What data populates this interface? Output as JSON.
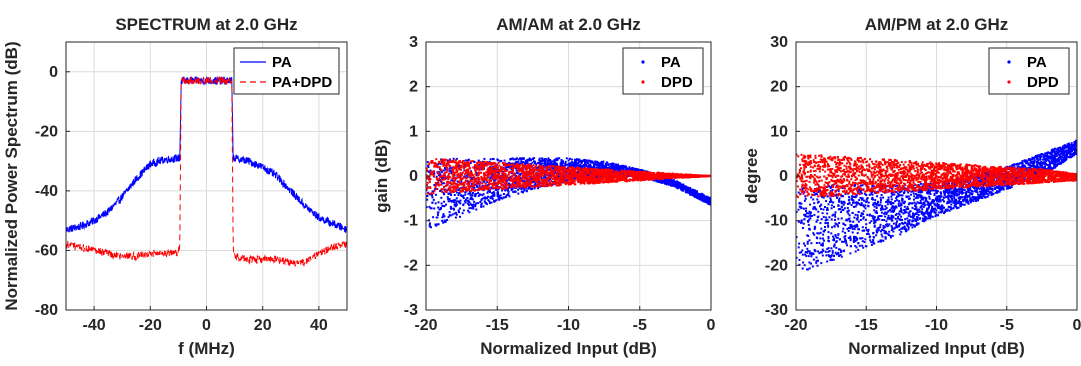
{
  "colors": {
    "pa": "#0000ff",
    "dpd": "#ff0000",
    "axis": "#262626",
    "grid": "#dcdcdc"
  },
  "chart_data": [
    {
      "type": "line",
      "title": "SPECTRUM at 2.0 GHz",
      "xlabel": "f (MHz)",
      "ylabel": "Normalized Power Spectrum (dB)",
      "xlim": [
        -50,
        50
      ],
      "ylim": [
        -80,
        10
      ],
      "xticks": [
        -40,
        -20,
        0,
        20,
        40
      ],
      "yticks": [
        0,
        -20,
        -40,
        -60,
        -80
      ],
      "grid": true,
      "legend_position": "top-right",
      "series": [
        {
          "name": "PA",
          "color": "#0000ff",
          "style": "solid",
          "x": [
            -50,
            -45,
            -40,
            -35,
            -30,
            -25,
            -20,
            -15,
            -10,
            -9.5,
            -9,
            0,
            9,
            9.5,
            10,
            15,
            20,
            25,
            30,
            35,
            40,
            45,
            50
          ],
          "y": [
            -53,
            -52,
            -50,
            -47,
            -42,
            -36,
            -31,
            -29.5,
            -29,
            -29,
            -3,
            -3,
            -3,
            -29,
            -29,
            -30,
            -32,
            -35,
            -40,
            -45,
            -49,
            -51,
            -53
          ]
        },
        {
          "name": "PA+DPD",
          "color": "#ff0000",
          "style": "dashed",
          "x": [
            -50,
            -45,
            -40,
            -35,
            -30,
            -25,
            -20,
            -15,
            -10,
            -9.5,
            -9,
            0,
            9,
            9.5,
            10,
            15,
            20,
            25,
            30,
            35,
            40,
            45,
            50
          ],
          "y": [
            -58,
            -59,
            -60,
            -61,
            -62,
            -62,
            -61,
            -61,
            -61,
            -58,
            -3,
            -3,
            -3,
            -60,
            -62,
            -63,
            -63,
            -63,
            -64,
            -64,
            -61,
            -59,
            -58
          ]
        }
      ]
    },
    {
      "type": "scatter",
      "title": "AM/AM at 2.0 GHz",
      "xlabel": "Normalized Input (dB)",
      "ylabel": "gain (dB)",
      "xlim": [
        -20,
        0
      ],
      "ylim": [
        -3,
        3
      ],
      "xticks": [
        -20,
        -15,
        -10,
        -5,
        0
      ],
      "yticks": [
        3,
        2,
        1,
        0,
        -1,
        -2,
        -3
      ],
      "grid": true,
      "legend_position": "top-right",
      "series": [
        {
          "name": "PA",
          "color": "#0000ff",
          "x": [
            -20,
            -17.5,
            -15,
            -12.5,
            -10,
            -7.5,
            -5,
            -2.5,
            0
          ],
          "y_upper": [
            0.4,
            0.4,
            0.4,
            0.4,
            0.4,
            0.32,
            0.15,
            -0.1,
            -0.5
          ],
          "y_lower": [
            -1.2,
            -0.9,
            -0.55,
            -0.3,
            -0.12,
            -0.02,
            0.0,
            -0.25,
            -0.65
          ]
        },
        {
          "name": "DPD",
          "color": "#ff0000",
          "x": [
            -20,
            -17.5,
            -15,
            -12.5,
            -10,
            -7.5,
            -5,
            -2.5,
            0
          ],
          "y_upper": [
            0.4,
            0.35,
            0.3,
            0.25,
            0.2,
            0.15,
            0.1,
            0.05,
            0.0
          ],
          "y_lower": [
            -0.4,
            -0.35,
            -0.3,
            -0.25,
            -0.2,
            -0.15,
            -0.1,
            -0.05,
            0.0
          ]
        }
      ]
    },
    {
      "type": "scatter",
      "title": "AM/PM at 2.0 GHz",
      "xlabel": "Normalized Input (dB)",
      "ylabel": "degree",
      "xlim": [
        -20,
        0
      ],
      "ylim": [
        -30,
        30
      ],
      "xticks": [
        -20,
        -15,
        -10,
        -5,
        0
      ],
      "yticks": [
        30,
        20,
        10,
        0,
        -10,
        -20,
        -30
      ],
      "grid": true,
      "legend_position": "top-right",
      "series": [
        {
          "name": "PA",
          "color": "#0000ff",
          "x": [
            -20,
            -17.5,
            -15,
            -12.5,
            -10,
            -7.5,
            -5,
            -2.5,
            0
          ],
          "y_upper": [
            -2,
            -2,
            -2,
            -2,
            -1.5,
            0,
            2,
            5,
            8
          ],
          "y_lower": [
            -22,
            -19,
            -16,
            -13,
            -9,
            -6,
            -3,
            0,
            5
          ]
        },
        {
          "name": "DPD",
          "color": "#ff0000",
          "x": [
            -20,
            -17.5,
            -15,
            -12.5,
            -10,
            -7.5,
            -5,
            -2.5,
            0
          ],
          "y_upper": [
            5,
            4.5,
            4,
            3.5,
            3,
            2.5,
            2,
            1.5,
            0.5
          ],
          "y_lower": [
            -5,
            -4.5,
            -4,
            -3.5,
            -3,
            -2.5,
            -2,
            -1.5,
            -1
          ]
        }
      ]
    }
  ]
}
